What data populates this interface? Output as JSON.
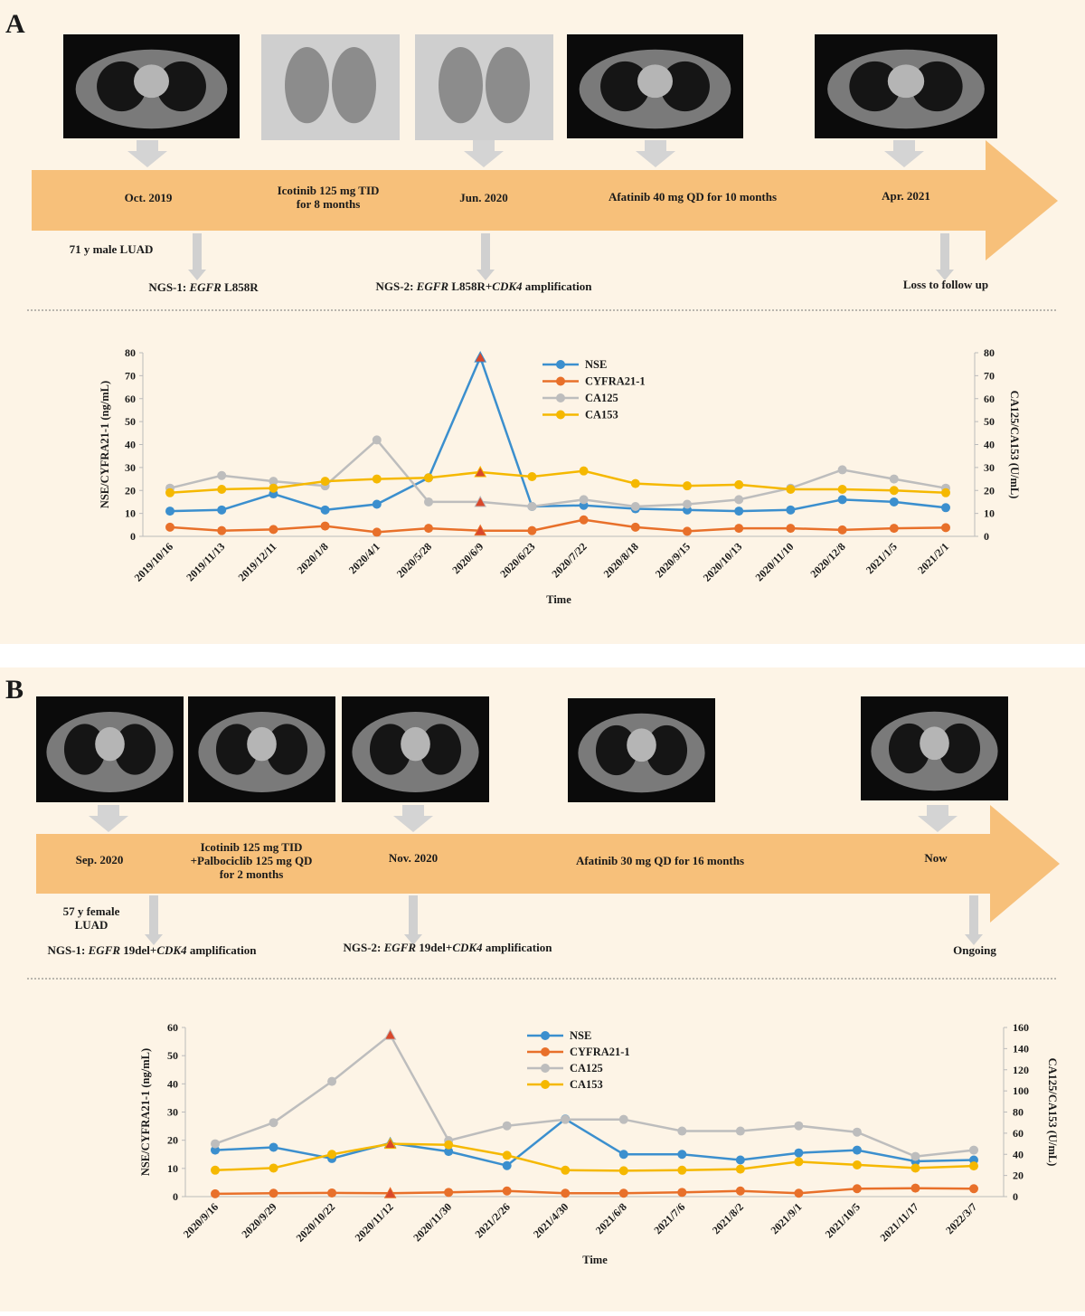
{
  "panels": [
    {
      "label": "A",
      "events": [
        [
          "Oct. 2019"
        ],
        [
          "Icotinib 125 mg TID",
          "for 8 months"
        ],
        [
          "Jun. 2020"
        ],
        [
          "Afatinib 40 mg QD for 10 months"
        ],
        [
          "Apr. 2021"
        ]
      ],
      "notes": [
        [
          [
            "71 y male LUAD"
          ]
        ],
        [
          [
            "NGS-1: ",
            "EGFR",
            " L858R"
          ]
        ],
        [
          [
            "NGS-2: ",
            "EGFR",
            " L858R+",
            "CDK4",
            " amplification"
          ]
        ],
        [
          [
            "Loss to follow up"
          ]
        ]
      ]
    },
    {
      "label": "B",
      "events": [
        [
          "Sep. 2020"
        ],
        [
          "Icotinib 125 mg TID",
          "+Palbociclib 125 mg QD",
          "for 2 months"
        ],
        [
          "Nov. 2020"
        ],
        [
          "Afatinib 30 mg QD for 16 months"
        ],
        [
          "Now"
        ]
      ],
      "notes": [
        [
          [
            "57 y female"
          ],
          [
            "LUAD"
          ]
        ],
        [
          [
            "NGS-1: ",
            "EGFR",
            " 19del+",
            "CDK4",
            " amplification"
          ]
        ],
        [
          [
            "NGS-2: ",
            "EGFR",
            " 19del+",
            "CDK4",
            " amplification"
          ]
        ],
        [
          [
            "Ongoing"
          ]
        ]
      ]
    }
  ],
  "chart_data": [
    {
      "type": "line",
      "x_label": "Time",
      "y_label": "NSE/CYFRA21-1 (ng/mL)",
      "y2_label": "CA125/CA153 (U/mL)",
      "categories": [
        "2019/10/16",
        "2019/11/13",
        "2019/12/11",
        "2020/1/8",
        "2020/4/1",
        "2020/5/28",
        "2020/6/9",
        "2020/6/23",
        "2020/7/22",
        "2020/8/18",
        "2020/9/15",
        "2020/10/13",
        "2020/11/10",
        "2020/12/8",
        "2021/1/5",
        "2021/2/1"
      ],
      "ylim": [
        0,
        80
      ],
      "yticks": [
        0,
        10,
        20,
        30,
        40,
        50,
        60,
        70,
        80
      ],
      "y2lim": [
        0,
        80
      ],
      "y2ticks": [
        0,
        10,
        20,
        30,
        40,
        50,
        60,
        70,
        80
      ],
      "highlight": "2020/6/9",
      "highlight_color": "#d9482b",
      "series": [
        {
          "name": "NSE",
          "color": "#3b8fce",
          "values": [
            11,
            11.5,
            18.5,
            11.5,
            14,
            25.5,
            78,
            13,
            13.5,
            12,
            11.5,
            11,
            11.5,
            16,
            15,
            12.5
          ]
        },
        {
          "name": "CYFRA21-1",
          "color": "#e8702a",
          "values": [
            4,
            2.5,
            3,
            4.5,
            1.8,
            3.5,
            2.5,
            2.5,
            7.2,
            4,
            2.2,
            3.5,
            3.5,
            2.8,
            3.5,
            3.8
          ]
        },
        {
          "name": "CA125",
          "color": "#bdbdbd",
          "axis": "y2",
          "values": [
            21,
            26.5,
            24,
            22,
            42,
            15,
            15,
            13,
            16,
            13,
            14,
            16,
            21,
            29,
            25,
            21
          ]
        },
        {
          "name": "CA153",
          "color": "#f5b800",
          "axis": "y2",
          "values": [
            19,
            20.5,
            21,
            24,
            25,
            25.5,
            28,
            26,
            28.5,
            23,
            22,
            22.5,
            20.5,
            20.5,
            20,
            19
          ]
        }
      ]
    },
    {
      "type": "line",
      "x_label": "Time",
      "y_label": "NSE/CYFRA21-1 (ng/mL)",
      "y2_label": "CA125/CA153 (U/mL)",
      "categories": [
        "2020/9/16",
        "2020/9/29",
        "2020/10/22",
        "2020/11/12",
        "2020/11/30",
        "2021/2/26",
        "2021/4/30",
        "2021/6/8",
        "2021/7/6",
        "2021/8/2",
        "2021/9/1",
        "2021/10/5",
        "2021/11/17",
        "2022/3/7"
      ],
      "ylim": [
        0,
        60
      ],
      "yticks": [
        0,
        10,
        20,
        30,
        40,
        50,
        60
      ],
      "y2lim": [
        0,
        160
      ],
      "y2ticks": [
        0,
        20,
        40,
        60,
        80,
        100,
        120,
        140,
        160
      ],
      "highlight": "2020/11/12",
      "highlight_color": "#d9482b",
      "series": [
        {
          "name": "NSE",
          "color": "#3b8fce",
          "values": [
            16.5,
            17.5,
            13.5,
            19,
            16,
            11,
            27.5,
            15,
            15,
            13,
            15.5,
            16.5,
            12.5,
            13
          ]
        },
        {
          "name": "CYFRA21-1",
          "color": "#e8702a",
          "values": [
            1,
            1.2,
            1.3,
            1.2,
            1.5,
            2,
            1.2,
            1.2,
            1.5,
            2,
            1.2,
            2.8,
            3,
            2.8
          ]
        },
        {
          "name": "CA125",
          "color": "#bdbdbd",
          "axis": "y2",
          "values": [
            50,
            70,
            109,
            153,
            53,
            67,
            73,
            73,
            62,
            62,
            67,
            61,
            38,
            44
          ]
        },
        {
          "name": "CA153",
          "color": "#f5b800",
          "axis": "y2",
          "values": [
            25,
            27,
            40,
            50,
            49,
            39,
            25,
            24.5,
            25,
            26,
            33,
            30,
            27,
            29
          ]
        }
      ]
    }
  ]
}
